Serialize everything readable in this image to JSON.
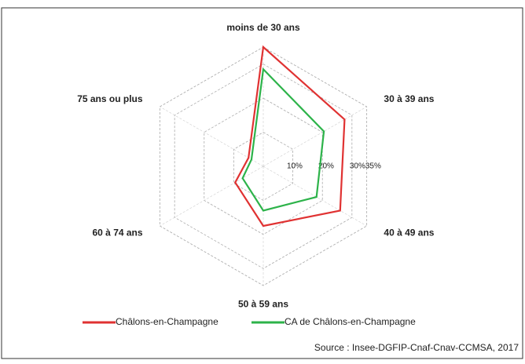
{
  "chart_data": {
    "type": "radar",
    "categories": [
      "moins de 30 ans",
      "30 à 39 ans",
      "40 à 49 ans",
      "50 à 59 ans",
      "60 à 74 ans",
      "75 ans ou plus"
    ],
    "series": [
      {
        "name": "Châlons-en-Champagne",
        "color": "#e03232",
        "values": [
          35,
          27.5,
          26,
          17.5,
          9.5,
          5
        ]
      },
      {
        "name": "CA de Châlons-en-Champagne",
        "color": "#2db34a",
        "values": [
          28.5,
          20.5,
          18,
          13,
          7,
          4
        ]
      }
    ],
    "ylim": [
      0,
      35
    ],
    "yticks": [
      {
        "value": 10,
        "label": "10%"
      },
      {
        "value": 20,
        "label": "20%"
      },
      {
        "value": 30,
        "label": "30%"
      },
      {
        "value": 35,
        "label": "35%"
      }
    ],
    "grid": true,
    "legend": "bottom",
    "source": "Source : Insee-DGFIP-Cnaf-Cnav-CCMSA, 2017"
  }
}
